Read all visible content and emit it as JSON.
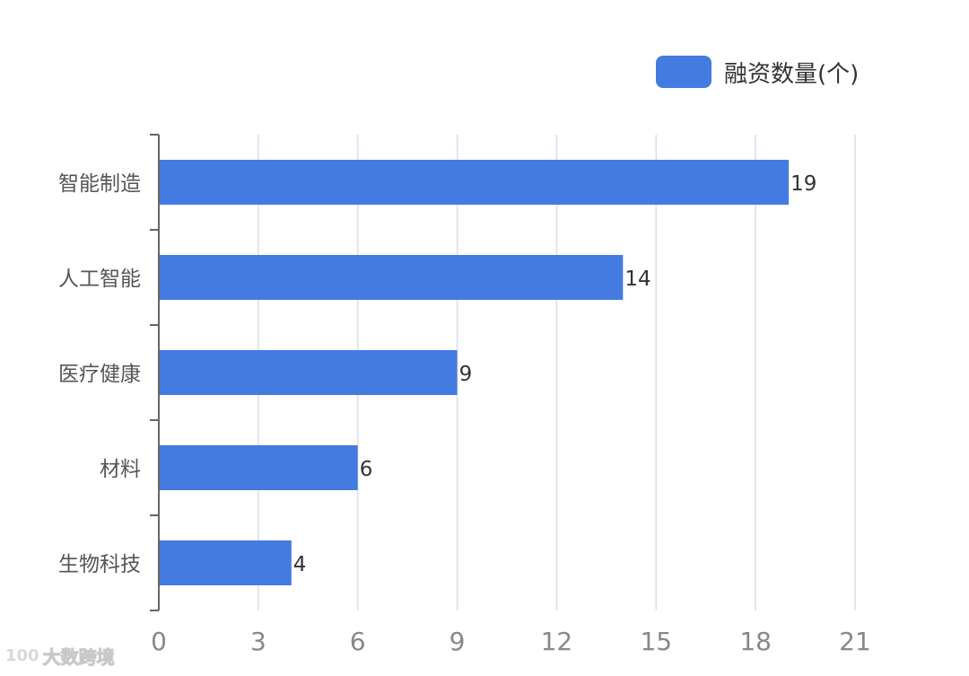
{
  "chart_data": {
    "type": "bar",
    "orientation": "horizontal",
    "categories": [
      "智能制造",
      "人工智能",
      "医疗健康",
      "材料",
      "生物科技"
    ],
    "series": [
      {
        "name": "融资数量(个)",
        "values": [
          19,
          14,
          9,
          6,
          4
        ],
        "color": "#437be0"
      }
    ],
    "xlim": [
      0,
      21
    ],
    "xticks": [
      "0",
      "3",
      "6",
      "9",
      "12",
      "15",
      "18",
      "21"
    ],
    "grid": true,
    "legend_position": "top-right",
    "data_labels": [
      "19",
      "14",
      "9",
      "6",
      "4"
    ]
  },
  "legend": {
    "label": "融资数量(个)"
  },
  "watermark": {
    "logo": "100",
    "text": "大数跨境"
  },
  "colors": {
    "bar": "#437be0",
    "grid": "#d8dfeb",
    "axis": "#666666",
    "label": "#555555",
    "tick": "#888888",
    "value": "#333333"
  }
}
